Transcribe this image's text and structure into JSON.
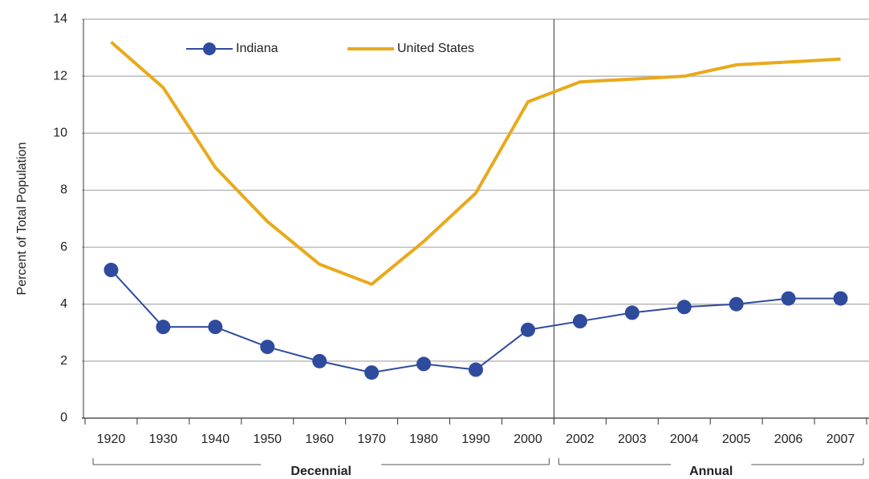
{
  "chart_data": {
    "type": "line",
    "y_label": "Percent of Total Population",
    "categories": [
      "1920",
      "1930",
      "1940",
      "1950",
      "1960",
      "1970",
      "1980",
      "1990",
      "2000",
      "2002",
      "2003",
      "2004",
      "2005",
      "2006",
      "2007"
    ],
    "series": [
      {
        "name": "Indiana",
        "color": "#2f4b9e",
        "markers": true,
        "values": [
          5.2,
          3.2,
          3.2,
          2.5,
          2.0,
          1.6,
          1.9,
          1.7,
          3.1,
          3.4,
          3.7,
          3.9,
          4.0,
          4.2,
          4.2
        ]
      },
      {
        "name": "United States",
        "color": "#e9a91b",
        "markers": false,
        "values": [
          13.2,
          11.6,
          8.8,
          6.9,
          5.4,
          4.7,
          6.2,
          7.9,
          11.1,
          11.8,
          11.9,
          12.0,
          12.4,
          12.5,
          12.6
        ]
      }
    ],
    "groups": [
      "Decennial",
      "Annual"
    ],
    "ylim": [
      0,
      14
    ],
    "yticks": [
      0,
      2,
      4,
      6,
      8,
      10,
      12,
      14
    ],
    "grid": true
  }
}
